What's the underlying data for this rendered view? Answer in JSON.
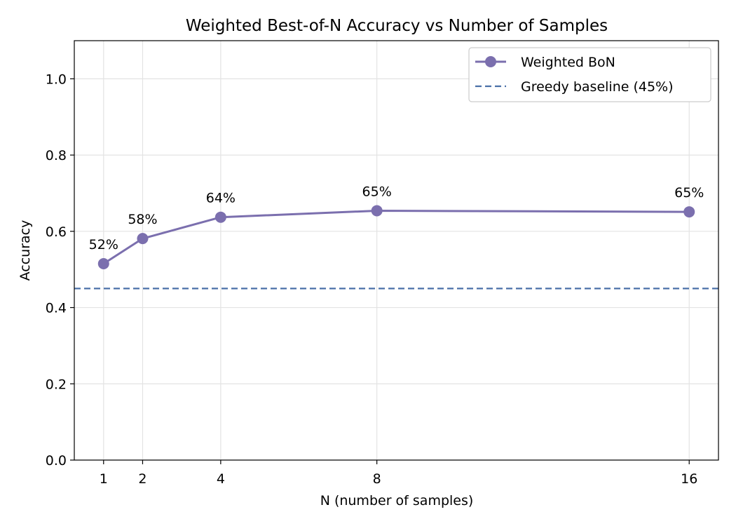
{
  "chart_data": {
    "type": "line",
    "title": "Weighted Best-of-N Accuracy vs Number of Samples",
    "xlabel": "N (number of samples)",
    "ylabel": "Accuracy",
    "xlim": [
      0.25,
      16.75
    ],
    "ylim": [
      0,
      1.1
    ],
    "xticks": [
      1,
      2,
      4,
      8,
      16
    ],
    "yticks": [
      0.0,
      0.2,
      0.4,
      0.6,
      0.8,
      1.0
    ],
    "ytick_labels": [
      "0.0",
      "0.2",
      "0.4",
      "0.6",
      "0.8",
      "1.0"
    ],
    "grid": true,
    "legend_position": "top-right",
    "series": [
      {
        "name": "Weighted BoN",
        "color": "#7b6fae",
        "marker": "circle",
        "x": [
          1,
          2,
          4,
          8,
          16
        ],
        "y": [
          0.515,
          0.581,
          0.637,
          0.654,
          0.651
        ],
        "labels": [
          "52%",
          "58%",
          "64%",
          "65%",
          "65%"
        ]
      }
    ],
    "reference_lines": [
      {
        "name": "Greedy baseline (45%)",
        "y": 0.45,
        "color": "#4a70a8",
        "style": "dashed"
      }
    ]
  }
}
